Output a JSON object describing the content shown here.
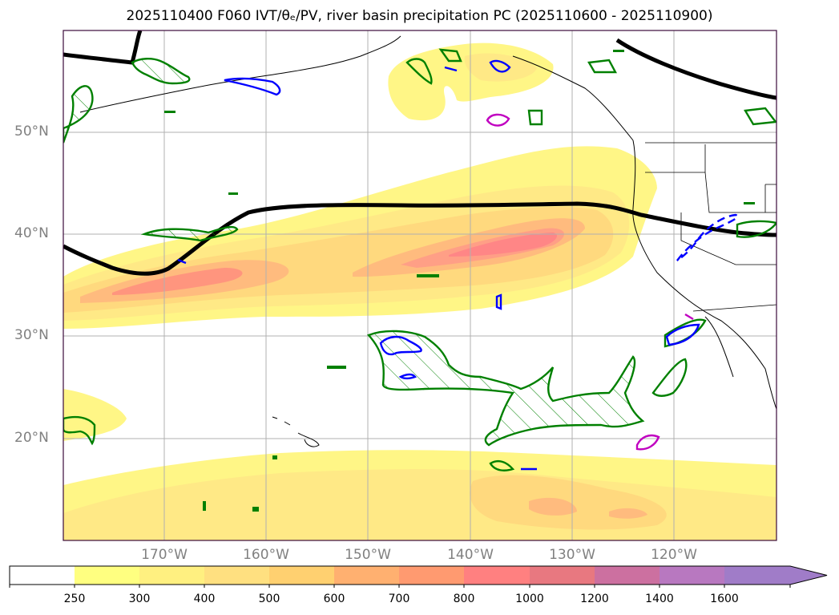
{
  "title": "2025110400 F060 IVT/θₑ/PV, river basin precipitation PC (2025110600 - 2025110900)",
  "map": {
    "lat_labels": [
      "50°N",
      "40°N",
      "30°N",
      "20°N"
    ],
    "lon_labels": [
      "170°W",
      "160°W",
      "150°W",
      "140°W",
      "130°W",
      "120°W"
    ]
  },
  "colorbar": {
    "ticks": [
      "250",
      "300",
      "400",
      "500",
      "600",
      "700",
      "800",
      "1000",
      "1200",
      "1400",
      "1600"
    ],
    "colors": [
      "#ffffff",
      "#ffff80",
      "#fff080",
      "#ffe080",
      "#ffd070",
      "#ffb070",
      "#ff9a70",
      "#ff8080",
      "#e87880",
      "#cc70a0",
      "#b878c0",
      "#a07cc8"
    ]
  },
  "colors": {
    "ivt_low": "#fff6a0",
    "ivt_mid": "#ffd878",
    "ivt_high": "#ff9a80",
    "pv_green": "#008000",
    "theta_blue": "#0000ff",
    "magenta": "#c000c0",
    "jet_black": "#000000"
  }
}
